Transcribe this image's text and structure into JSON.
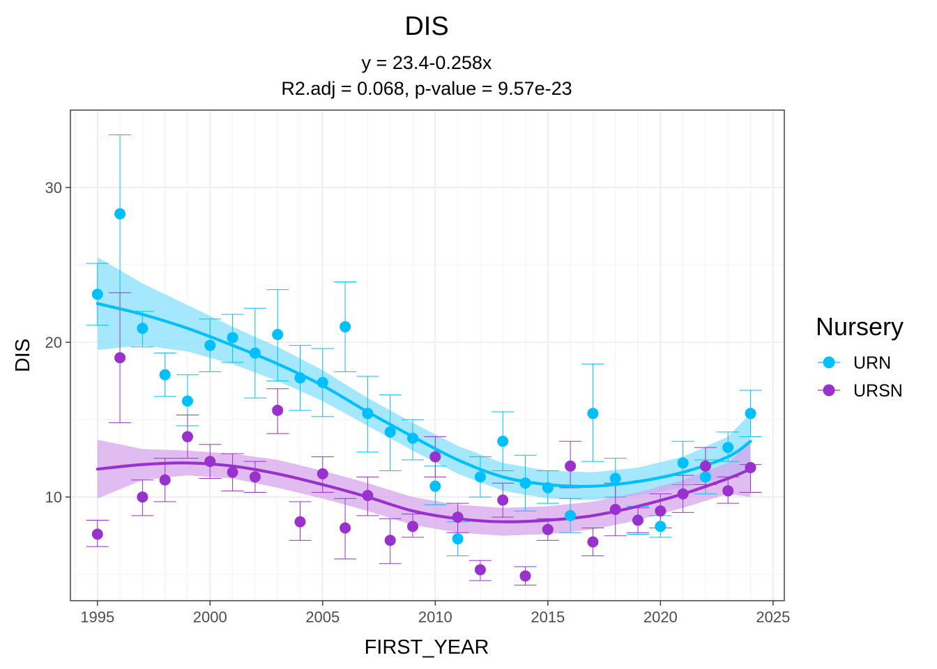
{
  "chart_data": {
    "type": "scatter",
    "title": "DIS",
    "subtitle_lines": [
      "y = 23.4-0.258x",
      "R2.adj = 0.068, p-value = 9.57e-23"
    ],
    "xlabel": "FIRST_YEAR",
    "ylabel": "DIS",
    "xlim": [
      1993.8,
      2025.5
    ],
    "ylim": [
      3.3,
      35.0
    ],
    "x_ticks": [
      1995,
      2000,
      2005,
      2010,
      2015,
      2020,
      2025
    ],
    "y_ticks": [
      10,
      20,
      30
    ],
    "grid": true,
    "legend": {
      "title": "Nursery",
      "position": "right"
    },
    "series": [
      {
        "name": "URN",
        "color": "#00BFFF",
        "ribbon_color": "#87DFFB",
        "x": [
          1995,
          1996,
          1997,
          1998,
          1999,
          2000,
          2001,
          2002,
          2003,
          2004,
          2005,
          2006,
          2007,
          2008,
          2009,
          2010,
          2011,
          2012,
          2013,
          2014,
          2015,
          2016,
          2017,
          2018,
          2019,
          2020,
          2021,
          2022,
          2023,
          2024
        ],
        "y": [
          23.1,
          28.3,
          20.9,
          17.9,
          16.2,
          19.8,
          20.3,
          19.3,
          20.5,
          17.7,
          17.4,
          21.0,
          15.4,
          14.2,
          13.8,
          10.7,
          7.3,
          11.3,
          13.6,
          10.9,
          10.6,
          8.8,
          15.4,
          11.2,
          8.5,
          8.1,
          12.2,
          11.3,
          13.2,
          15.4
        ],
        "y_low": [
          21.1,
          23.2,
          19.7,
          16.5,
          14.6,
          18.1,
          18.7,
          16.4,
          17.5,
          15.6,
          15.2,
          18.1,
          12.9,
          11.7,
          12.4,
          9.5,
          6.2,
          10.0,
          11.7,
          9.1,
          9.6,
          7.7,
          12.3,
          10.0,
          7.6,
          7.4,
          10.8,
          10.2,
          12.3,
          13.9
        ],
        "y_high": [
          25.1,
          33.4,
          22.0,
          19.3,
          17.9,
          21.5,
          21.8,
          22.2,
          23.4,
          19.8,
          19.6,
          23.9,
          17.8,
          16.6,
          15.0,
          12.0,
          8.4,
          12.6,
          15.5,
          12.7,
          11.7,
          9.9,
          18.6,
          12.5,
          9.4,
          8.8,
          13.6,
          12.4,
          14.2,
          16.9
        ],
        "smooth_x": [
          1995,
          1997,
          1999,
          2001,
          2003,
          2005,
          2007,
          2009,
          2011,
          2013,
          2015,
          2017,
          2019,
          2021,
          2023,
          2024
        ],
        "smooth_y": [
          22.5,
          21.8,
          20.9,
          19.8,
          18.6,
          17.2,
          15.5,
          13.9,
          12.4,
          11.3,
          10.8,
          10.7,
          11.0,
          11.6,
          12.6,
          13.6
        ],
        "smooth_low": [
          19.5,
          19.8,
          19.4,
          18.6,
          17.5,
          16.2,
          14.6,
          13.0,
          11.5,
          10.4,
          9.9,
          9.8,
          10.1,
          10.6,
          11.3,
          11.8
        ],
        "smooth_high": [
          25.5,
          23.8,
          22.4,
          21.0,
          19.7,
          18.2,
          16.4,
          14.8,
          13.3,
          12.2,
          11.7,
          11.6,
          11.9,
          12.6,
          13.9,
          15.4
        ]
      },
      {
        "name": "URSN",
        "color": "#9932CC",
        "ribbon_color": "#D5A6EC",
        "x": [
          1995,
          1996,
          1997,
          1998,
          1999,
          2000,
          2001,
          2002,
          2003,
          2004,
          2005,
          2006,
          2007,
          2008,
          2009,
          2010,
          2011,
          2012,
          2013,
          2014,
          2015,
          2016,
          2017,
          2018,
          2019,
          2020,
          2021,
          2022,
          2023,
          2024
        ],
        "y": [
          7.6,
          19.0,
          10.0,
          11.1,
          13.9,
          12.3,
          11.6,
          11.3,
          15.6,
          8.4,
          11.5,
          8.0,
          10.1,
          7.2,
          8.1,
          12.6,
          8.7,
          5.3,
          9.8,
          4.9,
          7.9,
          12.0,
          7.1,
          9.2,
          8.5,
          9.1,
          10.2,
          12.0,
          10.4,
          11.9
        ],
        "y_low": [
          6.8,
          14.8,
          8.8,
          9.7,
          12.5,
          11.2,
          10.4,
          10.3,
          14.1,
          7.2,
          10.3,
          6.0,
          8.8,
          5.7,
          7.4,
          11.3,
          7.7,
          4.6,
          8.7,
          4.3,
          7.2,
          10.6,
          6.2,
          7.5,
          7.7,
          8.0,
          9.0,
          10.8,
          9.6,
          10.3
        ],
        "y_high": [
          8.5,
          23.2,
          11.1,
          12.5,
          15.3,
          13.4,
          12.8,
          12.3,
          17.0,
          9.7,
          12.6,
          9.9,
          11.3,
          8.6,
          8.9,
          13.9,
          9.6,
          5.9,
          10.9,
          5.5,
          8.6,
          13.6,
          8.0,
          10.9,
          9.3,
          10.2,
          11.4,
          13.2,
          11.3,
          12.1
        ],
        "smooth_x": [
          1995,
          1997,
          1999,
          2001,
          2003,
          2005,
          2007,
          2009,
          2011,
          2013,
          2015,
          2017,
          2019,
          2021,
          2023,
          2024
        ],
        "smooth_y": [
          11.8,
          12.1,
          12.2,
          12.0,
          11.5,
          10.8,
          10.0,
          9.1,
          8.6,
          8.4,
          8.5,
          8.8,
          9.4,
          10.2,
          11.2,
          11.8
        ],
        "smooth_low": [
          9.9,
          11.1,
          11.4,
          11.2,
          10.6,
          9.9,
          9.1,
          8.2,
          7.7,
          7.5,
          7.6,
          7.9,
          8.5,
          9.3,
          10.2,
          10.0
        ],
        "smooth_high": [
          13.7,
          13.1,
          13.0,
          12.8,
          12.4,
          11.7,
          10.9,
          10.0,
          9.5,
          9.3,
          9.4,
          9.7,
          10.3,
          11.1,
          12.2,
          13.6
        ]
      }
    ]
  }
}
